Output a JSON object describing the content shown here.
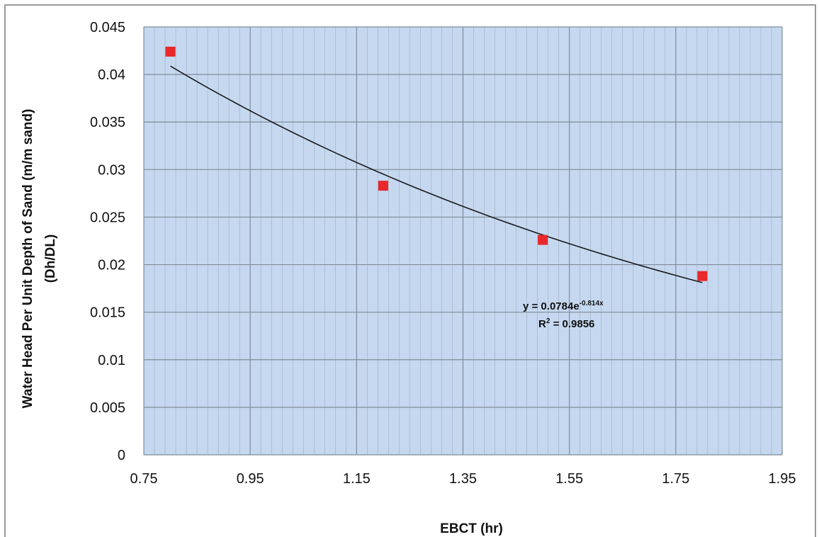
{
  "chart_data": {
    "type": "scatter",
    "title": "",
    "xlabel": "EBCT (hr)",
    "ylabel_line1": "Water Head Per Unit Depth of Sand (m/m sand)",
    "ylabel_line2": "(Dh/DL)",
    "xlim": [
      0.75,
      1.95
    ],
    "ylim": [
      0,
      0.045
    ],
    "x_ticks": [
      "0.75",
      "0.95",
      "1.15",
      "1.35",
      "1.55",
      "1.75",
      "1.95"
    ],
    "y_ticks": [
      "0",
      "0.005",
      "0.01",
      "0.015",
      "0.02",
      "0.025",
      "0.03",
      "0.035",
      "0.04",
      "0.045"
    ],
    "x_minor_step": 0.02,
    "x_major_step": 0.2,
    "y_major_step": 0.005,
    "grid": true,
    "legend": "none",
    "series": [
      {
        "x": [
          0.8,
          1.2,
          1.5,
          1.8
        ],
        "y": [
          0.0424,
          0.0283,
          0.0226,
          0.0188
        ],
        "marker": "square",
        "color": "#e8282a"
      }
    ],
    "trendline": {
      "type": "exponential",
      "a": 0.0784,
      "b": -0.814,
      "x_range": [
        0.8,
        1.8
      ],
      "color": "#1a1a1a",
      "equation_main": "y = 0.0784e",
      "equation_exponent": "-0.814x",
      "r2_prefix": "R",
      "r2_superscript": "2",
      "r2_suffix": " = 0.9856"
    },
    "colors": {
      "plot_background": "#c5d8f0",
      "grid_line": "#7f8c9a",
      "marker": "#e8282a",
      "frame": "#9a9a9a"
    }
  }
}
